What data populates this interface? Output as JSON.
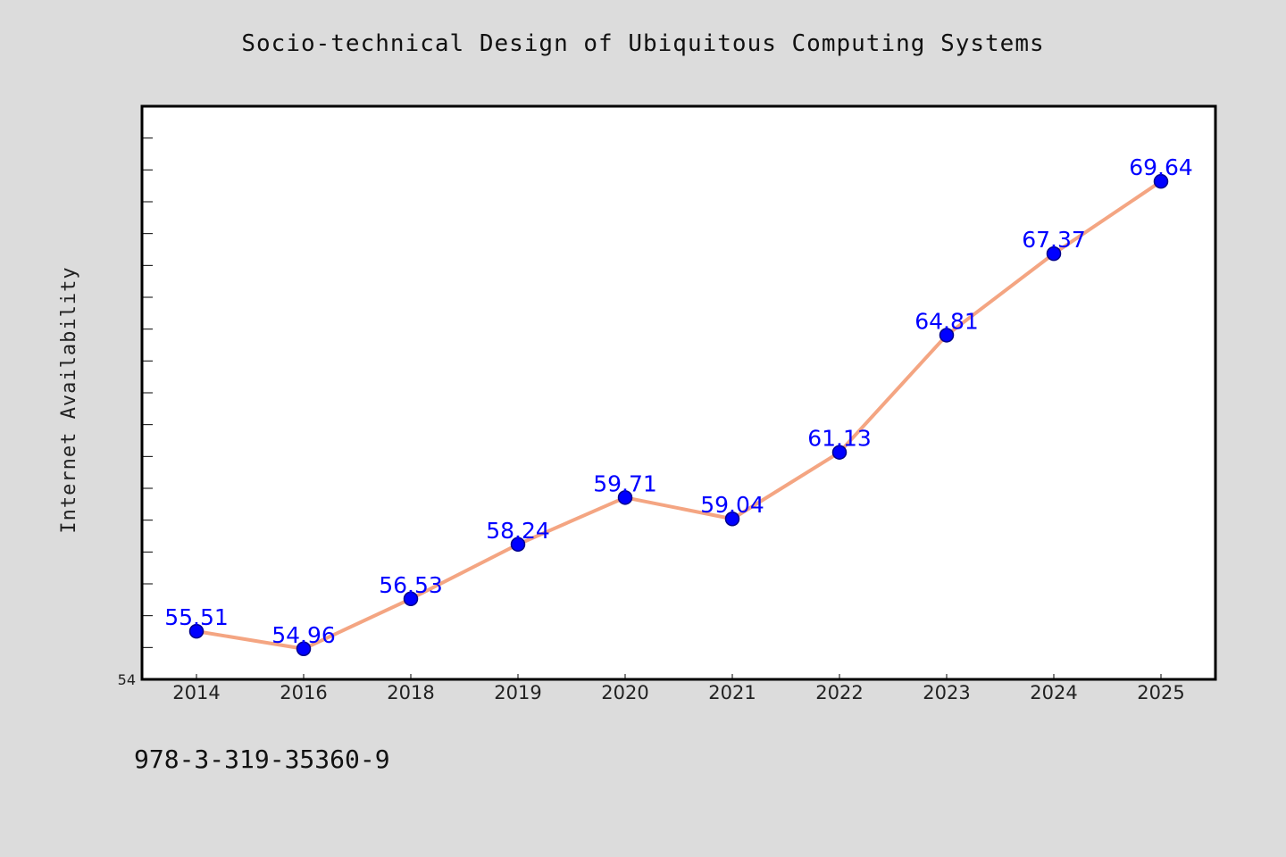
{
  "chart_data": {
    "type": "line",
    "title": "Socio-technical Design of Ubiquitous Computing Systems",
    "xlabel": "",
    "ylabel": "Internet Availability",
    "categories": [
      "2014",
      "2016",
      "2018",
      "2019",
      "2020",
      "2021",
      "2022",
      "2023",
      "2024",
      "2025"
    ],
    "series": [
      {
        "values": [
          55.51,
          54.96,
          56.53,
          58.24,
          59.71,
          59.04,
          61.13,
          64.81,
          67.37,
          69.64
        ],
        "value_labels": [
          "55.51",
          "54.96",
          "56.53",
          "58.24",
          "59.71",
          "59.04",
          "61.13",
          "64.81",
          "67.37",
          "69.64"
        ]
      }
    ],
    "ylim": [
      54,
      72
    ],
    "yticks_labeled": [
      "54"
    ],
    "grid": false,
    "legend": "none",
    "colors": {
      "line": "#f4a582",
      "marker": "#0000ff",
      "marker_edge": "#00008b",
      "data_label": "#0000ff",
      "plot_background": "#ffffff",
      "figure_background": "#dcdcdc"
    }
  },
  "footer": {
    "isbn": "978-3-319-35360-9"
  }
}
